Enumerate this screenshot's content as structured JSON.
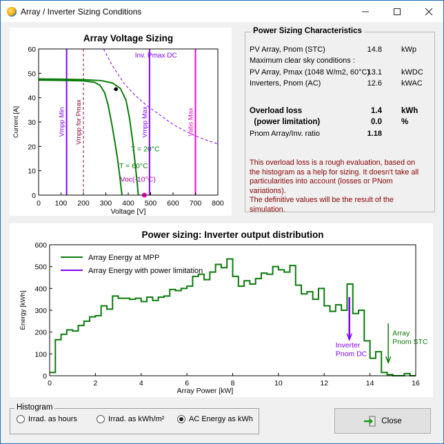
{
  "window": {
    "title": "Array / Inverter Sizing Conditions",
    "controls": {
      "minimize": "—",
      "maximize": "☐",
      "close": "✕"
    }
  },
  "characteristics": {
    "title": "Power Sizing Characteristics",
    "rows": [
      {
        "label": "PV Array, Pnom (STC)",
        "value": "14.8",
        "unit": "kWp",
        "bold": false
      },
      {
        "label": "Maximum clear sky conditions :",
        "value": "",
        "unit": "",
        "bold": false
      },
      {
        "label": "PV Array, Pmax (1048 W/m2, 60°C)",
        "value": "13.1",
        "unit": "kWDC",
        "bold": false
      },
      {
        "label": "Inverters, Pnom (AC)",
        "value": "12.6",
        "unit": "kWAC",
        "bold": false
      },
      {
        "label": "Overload loss",
        "value": "1.4",
        "unit": "kWh",
        "bold": true
      },
      {
        "label": "  (power limitation)",
        "value": "0.0",
        "unit": "%",
        "bold": true
      },
      {
        "label": "Pnom Array/Inv. ratio",
        "value": "1.18",
        "unit": "",
        "bold": "ratio"
      }
    ],
    "note_lines": [
      "This overload loss is a rough evaluation, based on",
      "the histogram as a help for sizing. It doesn't take all",
      "particularities into account (losses or PNom",
      "variations).",
      "The definitive values will be the result of the",
      "simulation."
    ]
  },
  "histogram": {
    "title": "Histogram",
    "options": [
      {
        "label": "Irrad. as hours",
        "selected": false
      },
      {
        "label": "Irrad. as kWh/m²",
        "selected": false
      },
      {
        "label": "AC Energy as kWh",
        "selected": true
      }
    ]
  },
  "close_button": {
    "label": "Close",
    "icon": "exit-arrow-icon"
  },
  "chart_data": [
    {
      "type": "line",
      "title": "Array Voltage Sizing",
      "xlabel": "Voltage [V]",
      "ylabel": "Current [A]",
      "xlim": [
        0,
        800
      ],
      "ylim": [
        0,
        60
      ],
      "xticks": [
        0,
        100,
        200,
        300,
        400,
        500,
        600,
        700,
        800
      ],
      "yticks": [
        0,
        10,
        20,
        30,
        40,
        50,
        60
      ],
      "grid": false,
      "series": [
        {
          "name": "T = 20°C",
          "color": "#0a7a0a",
          "points": [
            [
              0,
              47.7
            ],
            [
              100,
              47.6
            ],
            [
              200,
              47.4
            ],
            [
              280,
              47
            ],
            [
              330,
              46
            ],
            [
              365,
              43.8
            ],
            [
              390,
              39
            ],
            [
              405,
              32
            ],
            [
              420,
              22
            ],
            [
              432,
              12
            ],
            [
              440,
              5
            ],
            [
              445,
              0
            ]
          ]
        },
        {
          "name": "T = 60°C",
          "color": "#0a7a0a",
          "points": [
            [
              0,
              47.2
            ],
            [
              100,
              47.1
            ],
            [
              200,
              46.9
            ],
            [
              250,
              46.3
            ],
            [
              275,
              45
            ],
            [
              295,
              42
            ],
            [
              310,
              37
            ],
            [
              325,
              30
            ],
            [
              340,
              22
            ],
            [
              352,
              15
            ],
            [
              362,
              8
            ],
            [
              368,
              3
            ],
            [
              372,
              0
            ]
          ]
        }
      ],
      "mpp_marker": {
        "x": 345,
        "y": 43.5
      },
      "vlines": [
        {
          "x": 125,
          "label": "Vmpp Min",
          "color": "#8000ff",
          "style": "solid"
        },
        {
          "x": 200,
          "label": "Vmpp for Pmax",
          "color": "#8b0030",
          "style": "dashed"
        },
        {
          "x": 495,
          "label": "Vmpp Max",
          "color": "#8000ff",
          "style": "solid"
        },
        {
          "x": 700,
          "label": "Vabs Max",
          "color": "#ff00c8",
          "style": "solid"
        }
      ],
      "pmax_curve": {
        "label": "Inv. Pmax DC",
        "color": "#8000ff",
        "points": [
          [
            290,
            60
          ],
          [
            330,
            53
          ],
          [
            380,
            46
          ],
          [
            430,
            41
          ],
          [
            480,
            37
          ],
          [
            540,
            33
          ],
          [
            600,
            29
          ],
          [
            660,
            26
          ],
          [
            720,
            23.5
          ],
          [
            800,
            21
          ]
        ]
      },
      "voc_marker": {
        "x": 472,
        "y": 0,
        "label": "Voc(-10°C)",
        "color": "#ff00c8"
      },
      "annotations": [
        {
          "text": "T = 20°C",
          "x": 412,
          "y": 18
        },
        {
          "text": "T = 60°C",
          "x": 360,
          "y": 11
        }
      ]
    },
    {
      "type": "line",
      "title": "Power sizing: Inverter output distribution",
      "xlabel": "Array Power [kW]",
      "ylabel": "Energy [kWh]",
      "xlim": [
        0,
        16
      ],
      "ylim": [
        0,
        600
      ],
      "xticks": [
        0,
        2,
        4,
        6,
        8,
        10,
        12,
        14,
        16
      ],
      "yticks": [
        0,
        100,
        200,
        300,
        400,
        500,
        600
      ],
      "grid": false,
      "legend": "top-left",
      "series": [
        {
          "name": "Array Energy at MPP",
          "color": "#0a7a0a",
          "values": [
            15,
            165,
            190,
            210,
            205,
            230,
            250,
            270,
            275,
            320,
            305,
            365,
            355,
            355,
            350,
            355,
            340,
            360,
            345,
            360,
            365,
            395,
            390,
            400,
            410,
            455,
            465,
            440,
            475,
            510,
            495,
            535,
            455,
            410,
            435,
            420,
            445,
            470,
            465,
            500,
            485,
            475,
            505,
            415,
            375,
            385,
            350,
            400,
            320,
            295,
            325,
            300,
            420,
            285,
            300,
            160,
            80,
            110,
            15,
            5,
            0,
            0,
            10,
            0
          ]
        },
        {
          "name": "Array Energy with power limitation",
          "color": "#8000ff",
          "values": []
        }
      ],
      "bin_width": 0.25,
      "markers": [
        {
          "label1": "Inverter",
          "label2": "Pnom DC",
          "x": 13.1,
          "color": "#8000ff",
          "y_top": 360,
          "y_bottom": 165
        },
        {
          "label1": "Array",
          "label2": "Pnom STC",
          "x": 14.8,
          "color": "#0a7a0a",
          "y_top": 240,
          "y_bottom": 60
        }
      ]
    }
  ]
}
